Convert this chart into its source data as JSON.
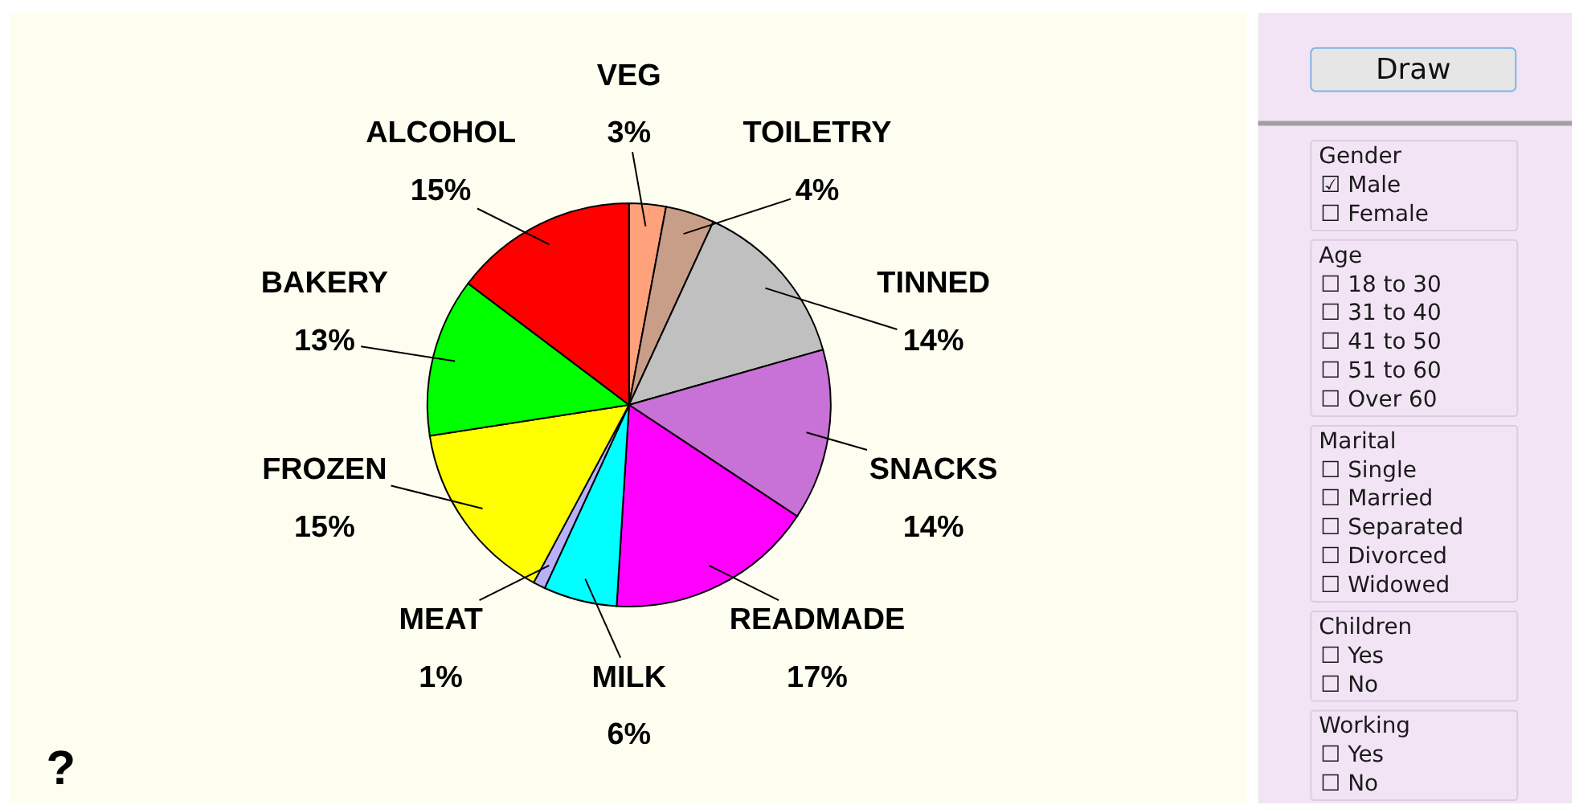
{
  "chart_data": [
    {
      "type": "pie",
      "categories": [
        "VEG",
        "TOILETRY",
        "TINNED",
        "SNACKS",
        "READMADE",
        "MILK",
        "MEAT",
        "FROZEN",
        "BAKERY",
        "ALCOHOL"
      ],
      "values": [
        3,
        4,
        14,
        14,
        17,
        6,
        1,
        15,
        13,
        15
      ],
      "value_labels": [
        "3%",
        "4%",
        "14%",
        "14%",
        "17%",
        "6%",
        "1%",
        "15%",
        "13%",
        "15%"
      ],
      "colors": [
        "#ffa27c",
        "#c89e88",
        "#c0c0c0",
        "#c872d8",
        "#ff00ff",
        "#00ffff",
        "#b8b0f8",
        "#ffff00",
        "#00ff00",
        "#ff0000"
      ],
      "annotations": [
        "?"
      ]
    },
    {
      "type": "other",
      "annotations": [
        "Draw"
      ]
    },
    {
      "type": "other",
      "title": "Gender",
      "annotations": [
        "☑ Male",
        "☐ Female"
      ]
    },
    {
      "type": "other",
      "title": "Age",
      "annotations": [
        "☐ 18 to 30",
        "☐ 31 to 40",
        "☐ 41 to 50",
        "☐ 51 to 60",
        "☐ Over 60"
      ]
    },
    {
      "type": "other",
      "title": "Marital",
      "annotations": [
        "☐ Single",
        "☐ Married",
        "☐ Separated",
        "☐ Divorced",
        "☐ Widowed"
      ]
    },
    {
      "type": "other",
      "title": "Children",
      "annotations": [
        "☐ Yes",
        "☐ No"
      ]
    },
    {
      "type": "other",
      "title": "Working",
      "annotations": [
        "☐ Yes",
        "☐ No"
      ]
    }
  ]
}
